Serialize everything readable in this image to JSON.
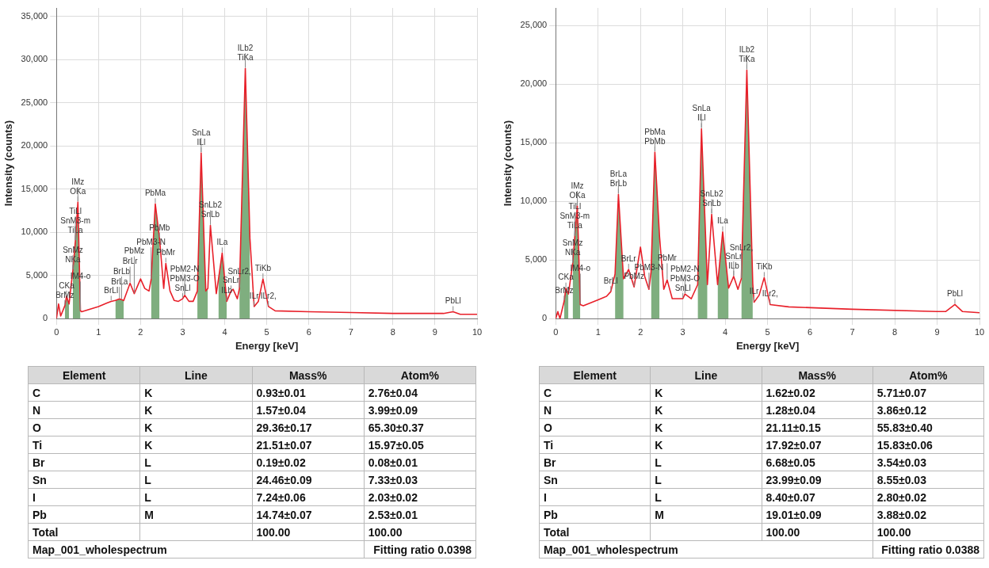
{
  "chart_data": [
    {
      "type": "line",
      "xlabel": "Energy [keV]",
      "ylabel": "Intensity (counts)",
      "xlim": [
        0,
        10
      ],
      "xticks": [
        0,
        1,
        2,
        3,
        4,
        5,
        6,
        7,
        8,
        9,
        10
      ],
      "ylim": [
        0,
        36000
      ],
      "yticks": [
        0,
        {
          "value": 5000,
          "label": "5,000"
        },
        {
          "value": 10000,
          "label": "10,000"
        },
        {
          "value": 15000,
          "label": "15,000"
        },
        {
          "value": 20000,
          "label": "20,000"
        },
        {
          "value": 25000,
          "label": "25,000"
        },
        {
          "value": 30000,
          "label": "30,000"
        },
        {
          "value": 35000,
          "label": "35,000"
        }
      ],
      "grid": true,
      "x": [
        0,
        0.05,
        0.1,
        0.2,
        0.24,
        0.3,
        0.39,
        0.45,
        0.51,
        0.57,
        0.6,
        0.8,
        1.0,
        1.2,
        1.3,
        1.4,
        1.5,
        1.55,
        1.6,
        1.75,
        1.85,
        2.0,
        2.1,
        2.2,
        2.25,
        2.35,
        2.45,
        2.55,
        2.6,
        2.7,
        2.8,
        2.9,
        3.0,
        3.05,
        3.15,
        3.25,
        3.35,
        3.44,
        3.55,
        3.6,
        3.66,
        3.8,
        3.85,
        3.94,
        4.05,
        4.15,
        4.2,
        4.3,
        4.35,
        4.49,
        4.6,
        4.7,
        4.8,
        4.91,
        5.04,
        5.2,
        6,
        7,
        8,
        9,
        9.2,
        9.43,
        9.6,
        10
      ],
      "series": [
        {
          "type": "area",
          "color": "#7fae7f",
          "x": [
            0.2,
            0.24,
            0.3,
            0.35,
            0.39,
            0.45,
            0.51,
            0.57,
            1.0,
            1.4,
            1.5,
            1.55,
            1.6,
            2.0,
            2.25,
            2.35,
            2.45,
            3.0,
            3.35,
            3.44,
            3.55,
            3.6,
            3.7,
            3.85,
            3.94,
            4.05,
            4.2,
            4.35,
            4.49,
            4.6
          ],
          "values": [
            1500,
            2600,
            1700,
            null,
            5600,
            9000,
            13500,
            900,
            null,
            2100,
            2300,
            2200,
            2100,
            null,
            4500,
            13300,
            9300,
            null,
            3200,
            19200,
            3200,
            3500,
            null,
            4500,
            7600,
            2000,
            null,
            3500,
            29000,
            9300
          ]
        },
        {
          "type": "line",
          "color": "#e8202a",
          "values": [
            0,
            1700,
            300,
            1500,
            2600,
            1700,
            5600,
            9000,
            13500,
            900,
            800,
            1100,
            1400,
            1800,
            2000,
            2100,
            2300,
            2200,
            2100,
            4100,
            2900,
            4600,
            3500,
            3200,
            4500,
            13300,
            9300,
            3500,
            6400,
            3200,
            2100,
            2000,
            2300,
            2700,
            2000,
            2000,
            3200,
            19200,
            3200,
            3500,
            10800,
            2900,
            4500,
            7600,
            2000,
            3200,
            3400,
            2300,
            3500,
            29000,
            9300,
            1400,
            2000,
            4600,
            1400,
            900,
            800,
            700,
            600,
            600,
            600,
            800,
            500,
            500
          ]
        }
      ],
      "annotations": [
        {
          "text": "BrMz",
          "x": 0.2,
          "y": 1500
        },
        {
          "text": "CKa",
          "x": 0.24,
          "y": 2600
        },
        {
          "text": "NKa",
          "x": 0.39,
          "y": 5600
        },
        {
          "text": "SnMz",
          "x": 0.39,
          "y": 5600
        },
        {
          "text": "TiLa",
          "x": 0.45,
          "y": 9000
        },
        {
          "text": "IM4-o",
          "x": 0.57,
          "y": 900
        },
        {
          "text": "OKa",
          "x": 0.51,
          "y": 13500
        },
        {
          "text": "IMz",
          "x": 0.51,
          "y": 13500
        },
        {
          "text": "SnM3-m",
          "x": 0.45,
          "y": 9000
        },
        {
          "text": "TiLl",
          "x": 0.45,
          "y": 9000
        },
        {
          "text": "BrLl",
          "x": 1.3,
          "y": 2000
        },
        {
          "text": "BrLa",
          "x": 1.5,
          "y": 2300
        },
        {
          "text": "BrLb",
          "x": 1.55,
          "y": 2200
        },
        {
          "text": "BrLr",
          "x": 1.75,
          "y": 4100
        },
        {
          "text": "PbMz",
          "x": 1.85,
          "y": 2900
        },
        {
          "text": "PbMb",
          "x": 2.45,
          "y": 9300
        },
        {
          "text": "PbMa",
          "x": 2.35,
          "y": 13300
        },
        {
          "text": "PbM3-N",
          "x": 2.25,
          "y": 4500
        },
        {
          "text": "PbMr",
          "x": 2.6,
          "y": 6400
        },
        {
          "text": "SnLl",
          "x": 3.0,
          "y": 2300
        },
        {
          "text": "PbM3-O",
          "x": 3.05,
          "y": 2700
        },
        {
          "text": "PbM2-N",
          "x": 3.05,
          "y": 2700
        },
        {
          "text": "ILl",
          "x": 3.44,
          "y": 19200
        },
        {
          "text": "SnLa",
          "x": 3.44,
          "y": 19200
        },
        {
          "text": "SnLb",
          "x": 3.66,
          "y": 10800
        },
        {
          "text": "SnLb2",
          "x": 3.66,
          "y": 10800
        },
        {
          "text": "ILa",
          "x": 3.94,
          "y": 7600
        },
        {
          "text": "ILb",
          "x": 4.05,
          "y": 2000
        },
        {
          "text": "SnLr",
          "x": 4.15,
          "y": 3200
        },
        {
          "text": "SnLr2,",
          "x": 4.35,
          "y": 3500
        },
        {
          "text": "TiKa",
          "x": 4.49,
          "y": 29000
        },
        {
          "text": "ILb2",
          "x": 4.49,
          "y": 29000
        },
        {
          "text": "ILr",
          "x": 4.7,
          "y": 1400
        },
        {
          "text": "TiKb",
          "x": 4.91,
          "y": 4600
        },
        {
          "text": "ILr2,",
          "x": 5.04,
          "y": 1400
        },
        {
          "text": "PbLl",
          "x": 9.43,
          "y": 800
        }
      ]
    },
    {
      "type": "line",
      "xlabel": "Energy [keV]",
      "ylabel": "Intensity (counts)",
      "xlim": [
        0,
        10
      ],
      "xticks": [
        0,
        1,
        2,
        3,
        4,
        5,
        6,
        7,
        8,
        9,
        10
      ],
      "ylim": [
        0,
        26500
      ],
      "yticks": [
        0,
        {
          "value": 5000,
          "label": "5,000"
        },
        {
          "value": 10000,
          "label": "10,000"
        },
        {
          "value": 15000,
          "label": "15,000"
        },
        {
          "value": 20000,
          "label": "20,000"
        },
        {
          "value": 25000,
          "label": "25,000"
        }
      ],
      "grid": true,
      "x": [
        0,
        0.05,
        0.1,
        0.2,
        0.24,
        0.3,
        0.4,
        0.45,
        0.51,
        0.58,
        0.65,
        1.0,
        1.2,
        1.3,
        1.4,
        1.48,
        1.6,
        1.72,
        1.85,
        2.0,
        2.1,
        2.2,
        2.25,
        2.34,
        2.45,
        2.55,
        2.63,
        2.75,
        3.0,
        3.05,
        3.2,
        3.35,
        3.44,
        3.58,
        3.68,
        3.82,
        3.94,
        4.08,
        4.2,
        4.3,
        4.38,
        4.51,
        4.65,
        4.68,
        4.8,
        4.92,
        5.06,
        5.5,
        7,
        9,
        9.2,
        9.42,
        9.6,
        10
      ],
      "series": [
        {
          "type": "area",
          "color": "#7fae7f",
          "x": [
            0.2,
            0.24,
            0.3,
            0.35,
            0.4,
            0.45,
            0.51,
            0.58,
            1.0,
            1.4,
            1.48,
            1.6,
            2.0,
            2.25,
            2.34,
            2.45,
            3.0,
            3.35,
            3.44,
            3.58,
            3.7,
            3.82,
            3.94,
            4.08,
            4.2,
            4.38,
            4.51,
            4.65
          ],
          "values": [
            1500,
            2600,
            2100,
            null,
            4700,
            7000,
            9600,
            1200,
            null,
            3800,
            10600,
            3400,
            null,
            4000,
            14200,
            7000,
            null,
            2900,
            16200,
            2900,
            null,
            2900,
            7400,
            2600,
            null,
            3400,
            21200,
            3000
          ]
        },
        {
          "type": "line",
          "color": "#e8202a",
          "values": [
            0,
            600,
            0,
            1500,
            2600,
            2100,
            4700,
            7000,
            9600,
            1200,
            1100,
            1600,
            1900,
            2300,
            3800,
            10600,
            3400,
            4200,
            2700,
            6100,
            3600,
            2500,
            4000,
            14200,
            7000,
            2500,
            3300,
            1700,
            1700,
            2100,
            1700,
            2900,
            16200,
            2900,
            8900,
            2900,
            7400,
            2600,
            3600,
            2500,
            3400,
            21200,
            3000,
            1400,
            2000,
            3500,
            1200,
            1000,
            800,
            600,
            600,
            1200,
            600,
            500
          ]
        }
      ],
      "annotations": [
        {
          "text": "BrMz",
          "x": 0.2,
          "y": 1500
        },
        {
          "text": "CKa",
          "x": 0.24,
          "y": 2600
        },
        {
          "text": "NKa",
          "x": 0.4,
          "y": 4700
        },
        {
          "text": "SnMz",
          "x": 0.4,
          "y": 4700
        },
        {
          "text": "TiLa",
          "x": 0.45,
          "y": 7000
        },
        {
          "text": "IM4-o",
          "x": 0.58,
          "y": 1200
        },
        {
          "text": "OKa",
          "x": 0.51,
          "y": 9600
        },
        {
          "text": "IMz",
          "x": 0.51,
          "y": 9600
        },
        {
          "text": "SnM3-m",
          "x": 0.45,
          "y": 7000
        },
        {
          "text": "TiLl",
          "x": 0.45,
          "y": 7000
        },
        {
          "text": "BrLl",
          "x": 1.3,
          "y": 2300
        },
        {
          "text": "BrLb",
          "x": 1.48,
          "y": 10600
        },
        {
          "text": "BrLa",
          "x": 1.48,
          "y": 10600
        },
        {
          "text": "BrLr",
          "x": 1.72,
          "y": 4200
        },
        {
          "text": "PbMz",
          "x": 1.85,
          "y": 2700
        },
        {
          "text": "PbM3-N",
          "x": 2.2,
          "y": 2500
        },
        {
          "text": "PbMb",
          "x": 2.34,
          "y": 14200
        },
        {
          "text": "PbMa",
          "x": 2.34,
          "y": 14200
        },
        {
          "text": "PbMr",
          "x": 2.63,
          "y": 3300
        },
        {
          "text": "SnLl",
          "x": 3.0,
          "y": 1700
        },
        {
          "text": "PbM3-O",
          "x": 3.05,
          "y": 2100
        },
        {
          "text": "PbM2-N",
          "x": 3.05,
          "y": 2100
        },
        {
          "text": "ILl",
          "x": 3.44,
          "y": 16200
        },
        {
          "text": "SnLa",
          "x": 3.44,
          "y": 16200
        },
        {
          "text": "SnLb",
          "x": 3.68,
          "y": 8900
        },
        {
          "text": "SnLb2",
          "x": 3.68,
          "y": 8900
        },
        {
          "text": "ILa",
          "x": 3.94,
          "y": 7400
        },
        {
          "text": "ILb",
          "x": 4.2,
          "y": 3600
        },
        {
          "text": "SnLr",
          "x": 4.2,
          "y": 3600
        },
        {
          "text": "SnLr2,",
          "x": 4.38,
          "y": 3400
        },
        {
          "text": "TiKa",
          "x": 4.51,
          "y": 21200
        },
        {
          "text": "ILb2",
          "x": 4.51,
          "y": 21200
        },
        {
          "text": "ILr",
          "x": 4.68,
          "y": 1400
        },
        {
          "text": "TiKb",
          "x": 4.92,
          "y": 3500
        },
        {
          "text": "ILr2,",
          "x": 5.06,
          "y": 1200
        },
        {
          "text": "PbLl",
          "x": 9.42,
          "y": 1200
        }
      ]
    },
    {
      "type": "other",
      "categories": [
        "Element",
        "Line",
        "Mass%",
        "Atom%"
      ],
      "cell_labels": [
        [
          "C",
          "K",
          "0.93±0.01",
          "2.76±0.04"
        ],
        [
          "N",
          "K",
          "1.57±0.04",
          "3.99±0.09"
        ],
        [
          "O",
          "K",
          "29.36±0.17",
          "65.30±0.37"
        ],
        [
          "Ti",
          "K",
          "21.51±0.07",
          "15.97±0.05"
        ],
        [
          "Br",
          "L",
          "0.19±0.02",
          "0.08±0.01"
        ],
        [
          "Sn",
          "L",
          "24.46±0.09",
          "7.33±0.03"
        ],
        [
          "I",
          "L",
          "7.24±0.06",
          "2.03±0.02"
        ],
        [
          "Pb",
          "M",
          "14.74±0.07",
          "2.53±0.01"
        ],
        [
          "Total",
          null,
          "100.00",
          "100.00"
        ]
      ],
      "annotations": [
        "Map_001_wholespectrum",
        "Fitting ratio 0.0398"
      ]
    },
    {
      "type": "other",
      "categories": [
        "Element",
        "Line",
        "Mass%",
        "Atom%"
      ],
      "cell_labels": [
        [
          "C",
          "K",
          "1.62±0.02",
          "5.71±0.07"
        ],
        [
          "N",
          "K",
          "1.28±0.04",
          "3.86±0.12"
        ],
        [
          "O",
          "K",
          "21.11±0.15",
          "55.83±0.40"
        ],
        [
          "Ti",
          "K",
          "17.92±0.07",
          "15.83±0.06"
        ],
        [
          "Br",
          "L",
          "6.68±0.05",
          "3.54±0.03"
        ],
        [
          "Sn",
          "L",
          "23.99±0.09",
          "8.55±0.03"
        ],
        [
          "I",
          "L",
          "8.40±0.07",
          "2.80±0.02"
        ],
        [
          "Pb",
          "M",
          "19.01±0.09",
          "3.88±0.02"
        ],
        [
          "Total",
          null,
          "100.00",
          "100.00"
        ]
      ],
      "annotations": [
        "Map_001_wholespectrum",
        "Fitting ratio 0.0388"
      ]
    }
  ]
}
